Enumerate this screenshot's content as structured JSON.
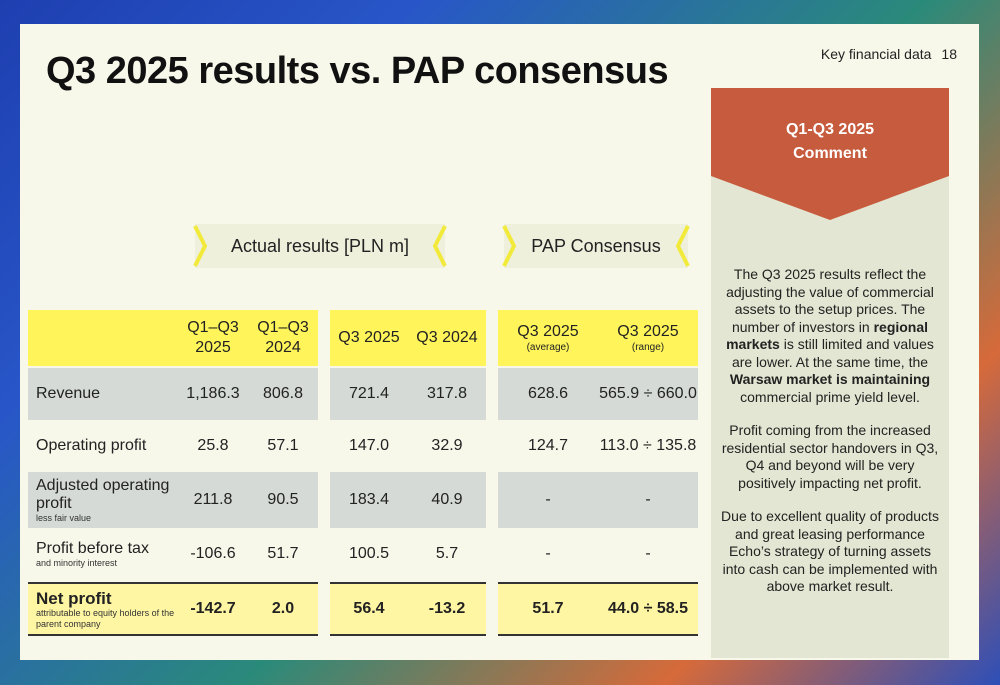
{
  "meta": {
    "section": "Key financial data",
    "page": "18"
  },
  "title": "Q3 2025 results vs. PAP consensus",
  "bands": {
    "actual": "Actual results [PLN m]",
    "consensus": "PAP Consensus"
  },
  "headers": {
    "q1q3_2025": [
      "Q1–Q3",
      "2025"
    ],
    "q1q3_2024": [
      "Q1–Q3",
      "2024"
    ],
    "q3_2025": "Q3 2025",
    "q3_2024": "Q3 2024",
    "cons_avg": [
      "Q3 2025",
      "(average)"
    ],
    "cons_range": [
      "Q3 2025",
      "(range)"
    ]
  },
  "rows": [
    {
      "label": "Revenue",
      "sub": "",
      "v": [
        "1,186.3",
        "806.8",
        "721.4",
        "317.8",
        "628.6",
        "565.9 ÷ 660.0"
      ]
    },
    {
      "label": "Operating profit",
      "sub": "",
      "v": [
        "25.8",
        "57.1",
        "147.0",
        "32.9",
        "124.7",
        "113.0 ÷ 135.8"
      ]
    },
    {
      "label": "Adjusted operating profit",
      "sub": "less fair value",
      "v": [
        "211.8",
        "90.5",
        "183.4",
        "40.9",
        "-",
        "-"
      ]
    },
    {
      "label": "Profit before tax",
      "sub": "and minority interest",
      "v": [
        "-106.6",
        "51.7",
        "100.5",
        "5.7",
        "-",
        "-"
      ]
    },
    {
      "label": "Net profit",
      "sub": "attributable to equity holders of the parent company",
      "v": [
        "-142.7",
        "2.0",
        "56.4",
        "-13.2",
        "51.7",
        "44.0 ÷ 58.5"
      ]
    }
  ],
  "comment": {
    "title_line1": "Q1-Q3 2025",
    "title_line2": "Comment",
    "p1_a": "The Q3 2025 results reflect the adjusting the value of commercial assets to the setup prices. The number of investors in ",
    "p1_b": "regional markets",
    "p1_c": " is still limited and values are lower. At the same time, the ",
    "p1_d": "Warsaw market is maintaining",
    "p1_e": " commercial prime yield level.",
    "p2": "Profit coming from the increased residential sector handovers in Q3, Q4 and beyond will be very positively impacting net profit.",
    "p3": "Due to excellent quality of products and great leasing performance Echo’s strategy of turning assets into cash can be implemented with above market result."
  },
  "colors": {
    "accent_yellow": "#fff55a",
    "comment_red": "#c75b3d",
    "chevron": "#f2ea3a"
  }
}
